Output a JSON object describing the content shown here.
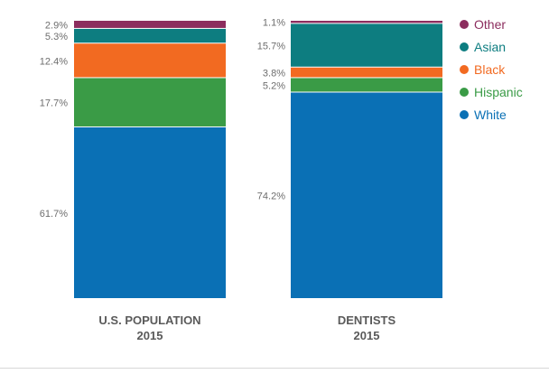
{
  "chart_data": {
    "type": "bar",
    "stacked": true,
    "normalized_percent": true,
    "categories": [
      {
        "line1": "U.S. POPULATION",
        "line2": "2015"
      },
      {
        "line1": "DENTISTS",
        "line2": "2015"
      }
    ],
    "series": [
      {
        "name": "White",
        "color": "#0a70b5",
        "values": [
          61.7,
          74.2
        ],
        "labels": [
          "61.7%",
          "74.2%"
        ]
      },
      {
        "name": "Hispanic",
        "color": "#3a9b46",
        "values": [
          17.7,
          5.2
        ],
        "labels": [
          "17.7%",
          "5.2%"
        ]
      },
      {
        "name": "Black",
        "color": "#f26a21",
        "values": [
          12.4,
          3.8
        ],
        "labels": [
          "12.4%",
          "3.8%"
        ]
      },
      {
        "name": "Asian",
        "color": "#0d7d80",
        "values": [
          5.3,
          15.7
        ],
        "labels": [
          "5.3%",
          "15.7%"
        ]
      },
      {
        "name": "Other",
        "color": "#8c2d5e",
        "values": [
          2.9,
          1.1
        ],
        "labels": [
          "2.9%",
          "1.1%"
        ]
      }
    ],
    "legend": {
      "position": "right",
      "order": [
        "Other",
        "Asian",
        "Black",
        "Hispanic",
        "White"
      ]
    },
    "ylim": [
      0,
      100
    ],
    "grid": false,
    "colors": {
      "label_text": "#6d6d6d",
      "category_text": "#5a5a5a"
    }
  }
}
